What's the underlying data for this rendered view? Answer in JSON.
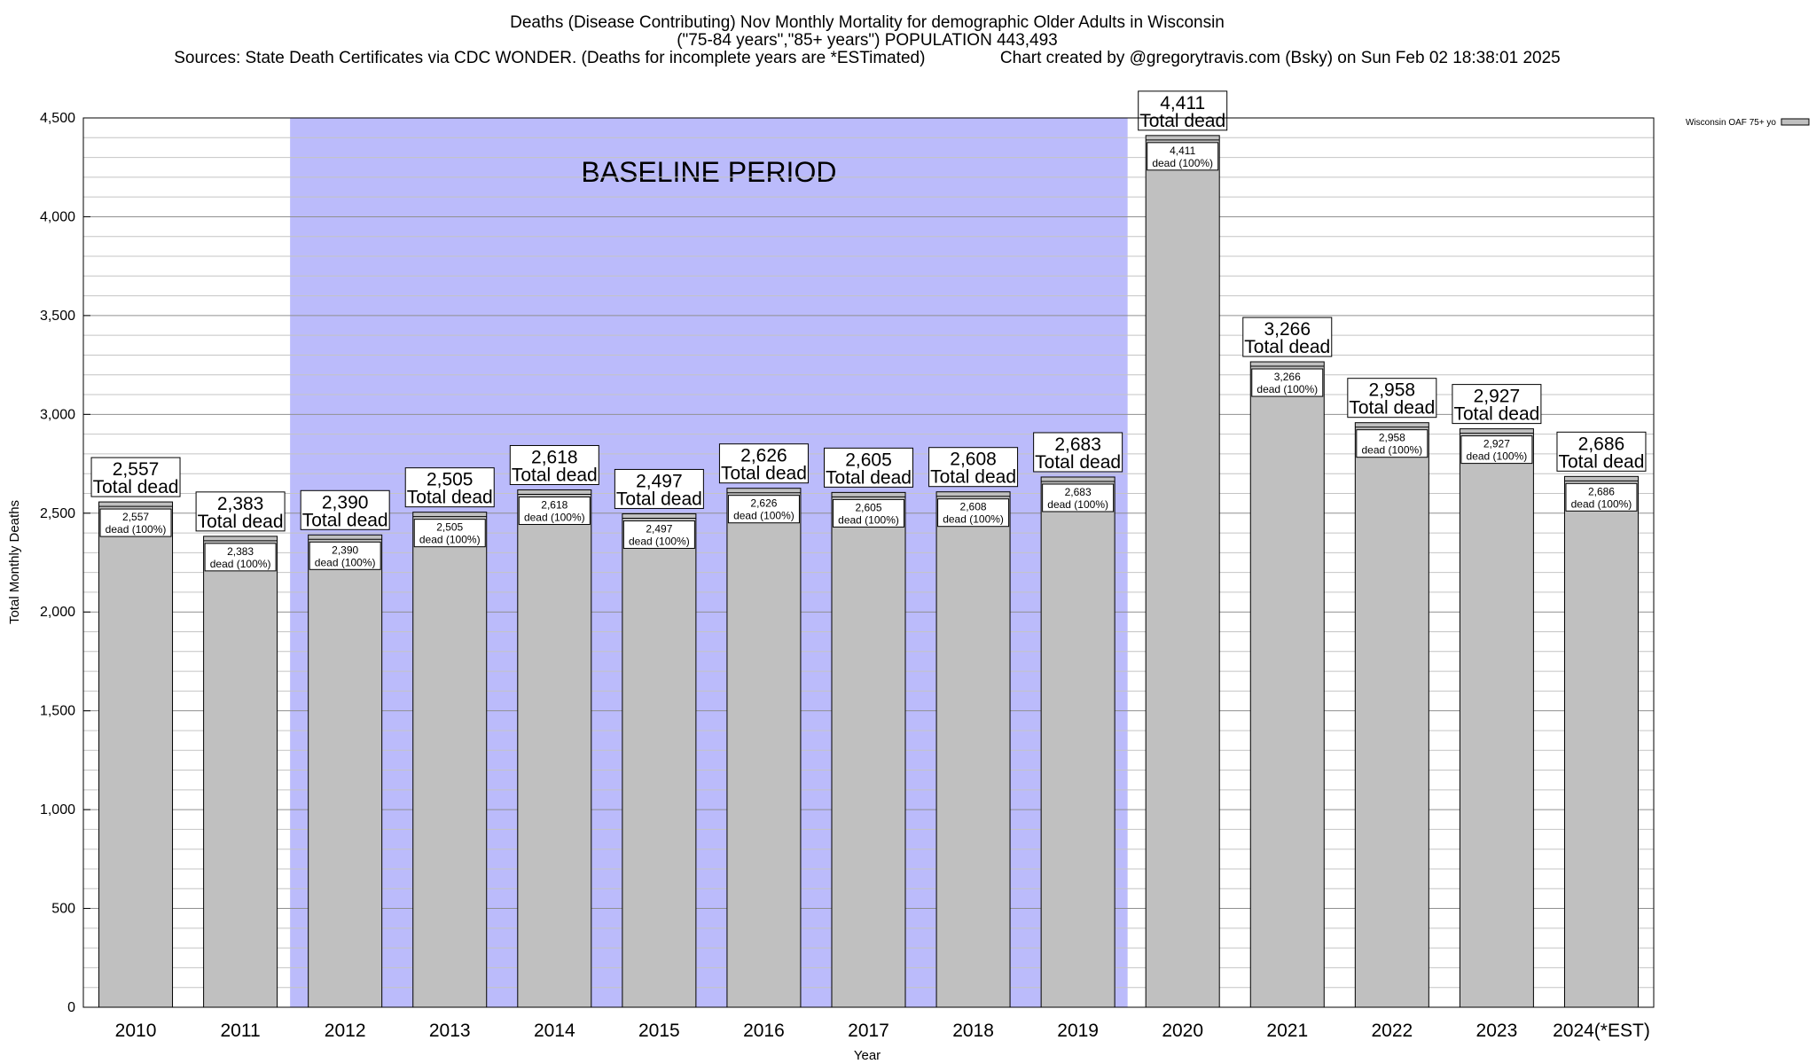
{
  "chart_data": {
    "type": "bar",
    "title_lines": [
      "Deaths (Disease Contributing) Nov Monthly Mortality for demographic Older Adults in Wisconsin",
      "(\"75-84 years\",\"85+ years\") POPULATION 443,493",
      "Sources: State Death Certificates via CDC WONDER. (Deaths for incomplete years are *ESTimated)                Chart created by @gregorytravis.com (Bsky) on Sun Feb 02 18:38:01 2025"
    ],
    "xlabel": "Year",
    "ylabel": "Total Monthly Deaths",
    "ylim": [
      0,
      4500
    ],
    "yticks": [
      {
        "value": 0,
        "label": "0"
      },
      {
        "value": 500,
        "label": "500"
      },
      {
        "value": 1000,
        "label": "1,000"
      },
      {
        "value": 1500,
        "label": "1,500"
      },
      {
        "value": 2000,
        "label": "2,000"
      },
      {
        "value": 2500,
        "label": "2,500"
      },
      {
        "value": 3000,
        "label": "3,000"
      },
      {
        "value": 3500,
        "label": "3,500"
      },
      {
        "value": 4000,
        "label": "4,000"
      },
      {
        "value": 4500,
        "label": "4,500"
      }
    ],
    "minor_grid_step": 100,
    "grid": true,
    "categories": [
      "2010",
      "2011",
      "2012",
      "2013",
      "2014",
      "2015",
      "2016",
      "2017",
      "2018",
      "2019",
      "2020",
      "2021",
      "2022",
      "2023",
      "2024(*EST)"
    ],
    "values": [
      2557,
      2383,
      2390,
      2505,
      2618,
      2497,
      2626,
      2605,
      2608,
      2683,
      4411,
      3266,
      2958,
      2927,
      2686
    ],
    "value_labels": [
      "2,557",
      "2,383",
      "2,390",
      "2,505",
      "2,618",
      "2,497",
      "2,626",
      "2,605",
      "2,608",
      "2,683",
      "4,411",
      "3,266",
      "2,958",
      "2,927",
      "2,686"
    ],
    "top_label_suffix": "Total dead",
    "inner_label_suffix": "dead (100%)",
    "baseline_period": {
      "label": "BASELINE PERIOD",
      "from": "2012",
      "to": "2019"
    },
    "legend": {
      "entry": "Wisconsin OAF 75+ yo",
      "placement": "top-right"
    },
    "colors": {
      "bar": "#c0c0c0",
      "baseline": "#bbbbfb",
      "grid": "#a0a0a0"
    }
  }
}
